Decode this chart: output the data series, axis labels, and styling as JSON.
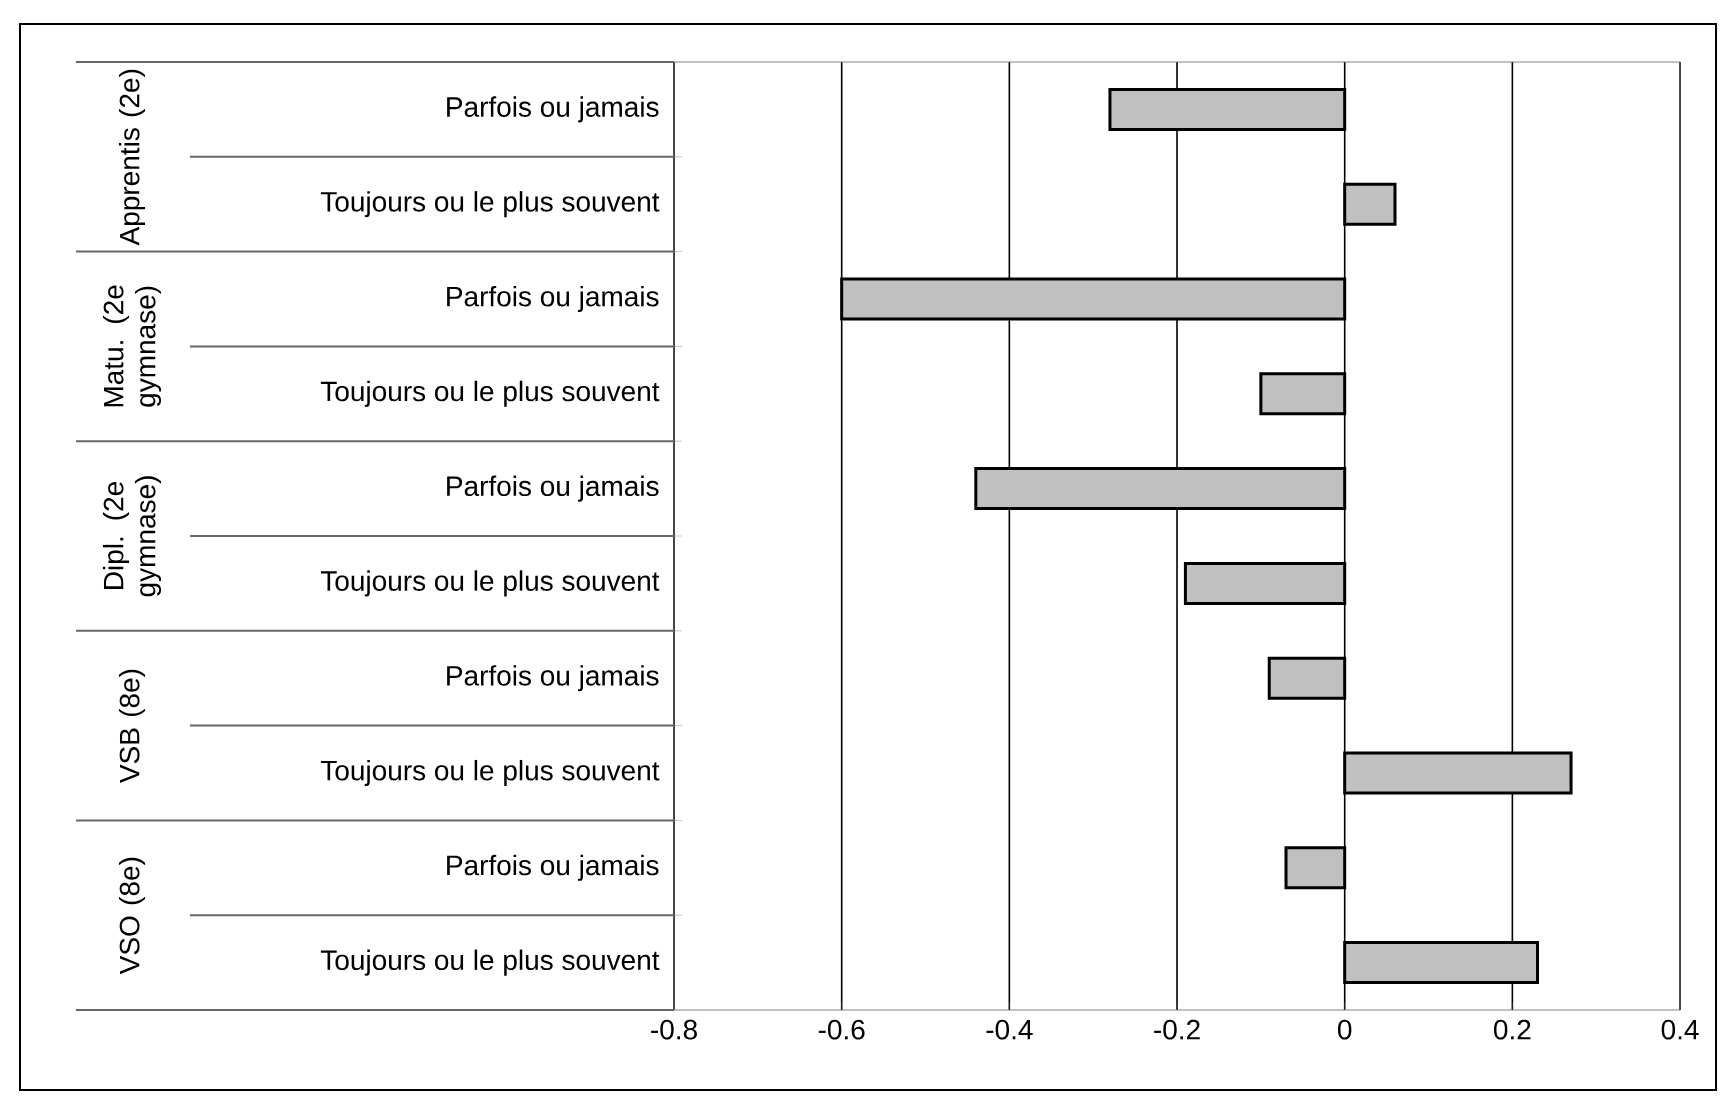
{
  "chart_data": {
    "type": "bar",
    "orientation": "horizontal",
    "categories": [
      "Parfois ou jamais",
      "Toujours ou le plus souvent",
      "Parfois ou jamais",
      "Toujours ou le plus souvent",
      "Parfois ou jamais",
      "Toujours ou le plus souvent",
      "Parfois ou jamais",
      "Toujours ou le plus souvent",
      "Parfois ou jamais",
      "Toujours ou le plus souvent"
    ],
    "values": [
      -0.28,
      0.06,
      -0.6,
      -0.1,
      -0.44,
      -0.19,
      -0.09,
      0.27,
      -0.07,
      0.23
    ],
    "color": "#c0c0c0",
    "xlim": [
      -0.8,
      0.4
    ],
    "xticks": [
      -0.8,
      -0.6,
      -0.4,
      -0.2,
      0,
      0.2,
      0.4
    ],
    "grid": "x",
    "annotations": [
      "Apprentis (2e)",
      "Matu. (2e gymnase)",
      "Dipl. (2e gymnase)",
      "VSB (8e)",
      "VSO (8e)"
    ]
  }
}
